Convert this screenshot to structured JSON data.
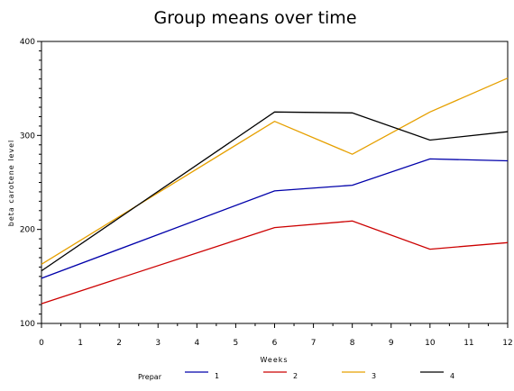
{
  "chart_data": {
    "type": "line",
    "title": "Group means over time",
    "xlabel": "Weeks",
    "ylabel": "beta carotene level",
    "xlim": [
      0,
      12
    ],
    "ylim": [
      100,
      400
    ],
    "x_ticks": [
      0,
      1,
      2,
      3,
      4,
      5,
      6,
      7,
      8,
      9,
      10,
      11,
      12
    ],
    "y_ticks": [
      100,
      200,
      300,
      400
    ],
    "grid": false,
    "legend": {
      "title": "Prepar",
      "placement": "bottom"
    },
    "series": [
      {
        "name": "1",
        "color": "#0000aa",
        "points": [
          [
            0,
            148
          ],
          [
            6,
            241
          ],
          [
            8,
            247
          ],
          [
            10,
            275
          ],
          [
            12,
            273
          ]
        ]
      },
      {
        "name": "2",
        "color": "#cc0000",
        "points": [
          [
            0,
            121
          ],
          [
            6,
            202
          ],
          [
            8,
            209
          ],
          [
            10,
            179
          ],
          [
            12,
            186
          ]
        ]
      },
      {
        "name": "3",
        "color": "#e6a000",
        "points": [
          [
            0,
            163
          ],
          [
            6,
            315
          ],
          [
            8,
            280
          ],
          [
            10,
            325
          ],
          [
            12,
            361
          ]
        ]
      },
      {
        "name": "4",
        "color": "#000000",
        "points": [
          [
            0,
            156
          ],
          [
            6,
            325
          ],
          [
            8,
            324
          ],
          [
            10,
            295
          ],
          [
            12,
            304
          ]
        ]
      }
    ]
  }
}
